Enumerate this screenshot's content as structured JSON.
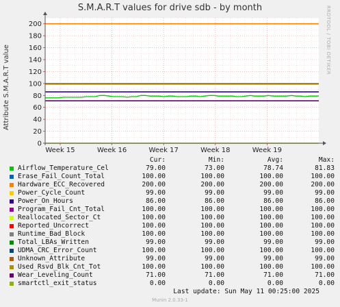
{
  "chart_data": {
    "type": "line",
    "title": "S.M.A.R.T values for drive sdb - by month",
    "ylabel": "Attribute S.M.A.R.T value",
    "ylim": [
      0,
      210
    ],
    "yticks": [
      0,
      20,
      40,
      60,
      80,
      100,
      120,
      140,
      160,
      180,
      200
    ],
    "xticks": [
      "Week 15",
      "Week 16",
      "Week 17",
      "Week 18",
      "Week 19"
    ],
    "grid": true,
    "side_credit": "RRDTOOL / TOBI OETIKER",
    "legend_headers": {
      "cur": "Cur:",
      "min": "Min:",
      "avg": "Avg:",
      "max": "Max:"
    },
    "series": [
      {
        "name": "Airflow_Temperature_Cel",
        "color": "#00cc00",
        "cur": "79.00",
        "min": "73.00",
        "avg": "78.74",
        "max": "81.83",
        "values": [
          76,
          76,
          76,
          76,
          77,
          77,
          77,
          77,
          77,
          78,
          78,
          78,
          80,
          80,
          79,
          78,
          78,
          78,
          77,
          78,
          78,
          80,
          80,
          79,
          79,
          79,
          78,
          79,
          79,
          78,
          78,
          78,
          79,
          79,
          78,
          79,
          80,
          80,
          79,
          79,
          79,
          79,
          78,
          78,
          79,
          80,
          79,
          79,
          79,
          80,
          79,
          79,
          79,
          79,
          80,
          79,
          79,
          78,
          79,
          79,
          79
        ]
      },
      {
        "name": "Erase_Fail_Count_Total",
        "color": "#0066b3",
        "cur": "100.00",
        "min": "100.00",
        "avg": "100.00",
        "max": "100.00",
        "values": [
          100,
          100
        ]
      },
      {
        "name": "Hardware_ECC_Recovered",
        "color": "#ff8000",
        "cur": "200.00",
        "min": "200.00",
        "avg": "200.00",
        "max": "200.00",
        "values": [
          200,
          200
        ]
      },
      {
        "name": "Power_Cycle_Count",
        "color": "#ffcc00",
        "cur": "99.00",
        "min": "99.00",
        "avg": "99.00",
        "max": "99.00",
        "values": [
          99,
          99
        ]
      },
      {
        "name": "Power_On_Hours",
        "color": "#330099",
        "cur": "86.00",
        "min": "86.00",
        "avg": "86.00",
        "max": "86.00",
        "values": [
          86,
          86
        ]
      },
      {
        "name": "Program_Fail_Cnt_Total",
        "color": "#990099",
        "cur": "100.00",
        "min": "100.00",
        "avg": "100.00",
        "max": "100.00",
        "values": [
          100,
          100
        ]
      },
      {
        "name": "Reallocated_Sector_Ct",
        "color": "#ccff00",
        "cur": "100.00",
        "min": "100.00",
        "avg": "100.00",
        "max": "100.00",
        "values": [
          100,
          100
        ]
      },
      {
        "name": "Reported_Uncorrect",
        "color": "#ff0000",
        "cur": "100.00",
        "min": "100.00",
        "avg": "100.00",
        "max": "100.00",
        "values": [
          100,
          100
        ]
      },
      {
        "name": "Runtime_Bad_Block",
        "color": "#808080",
        "cur": "100.00",
        "min": "100.00",
        "avg": "100.00",
        "max": "100.00",
        "values": [
          100,
          100
        ]
      },
      {
        "name": "Total_LBAs_Written",
        "color": "#008f00",
        "cur": "99.00",
        "min": "99.00",
        "avg": "99.00",
        "max": "99.00",
        "values": [
          99,
          99
        ]
      },
      {
        "name": "UDMA_CRC_Error_Count",
        "color": "#00487d",
        "cur": "100.00",
        "min": "100.00",
        "avg": "100.00",
        "max": "100.00",
        "values": [
          100,
          100
        ]
      },
      {
        "name": "Unknown_Attribute",
        "color": "#b35a00",
        "cur": "99.00",
        "min": "99.00",
        "avg": "99.00",
        "max": "99.00",
        "values": [
          99,
          99
        ]
      },
      {
        "name": "Used_Rsvd_Blk_Cnt_Tot",
        "color": "#b38f00",
        "cur": "100.00",
        "min": "100.00",
        "avg": "100.00",
        "max": "100.00",
        "values": [
          100,
          100
        ]
      },
      {
        "name": "Wear_Leveling_Count",
        "color": "#6b006b",
        "cur": "71.00",
        "min": "71.00",
        "avg": "71.00",
        "max": "71.00",
        "values": [
          71,
          71
        ]
      },
      {
        "name": "smartctl_exit_status",
        "color": "#8fb300",
        "cur": "0.00",
        "min": "0.00",
        "avg": "0.00",
        "max": "0.00",
        "values": [
          0,
          0
        ]
      }
    ]
  },
  "footer": {
    "last_update": "Last update:  Sun May 11 00:25:00 2025",
    "version": "Munin 2.0.33-1"
  }
}
